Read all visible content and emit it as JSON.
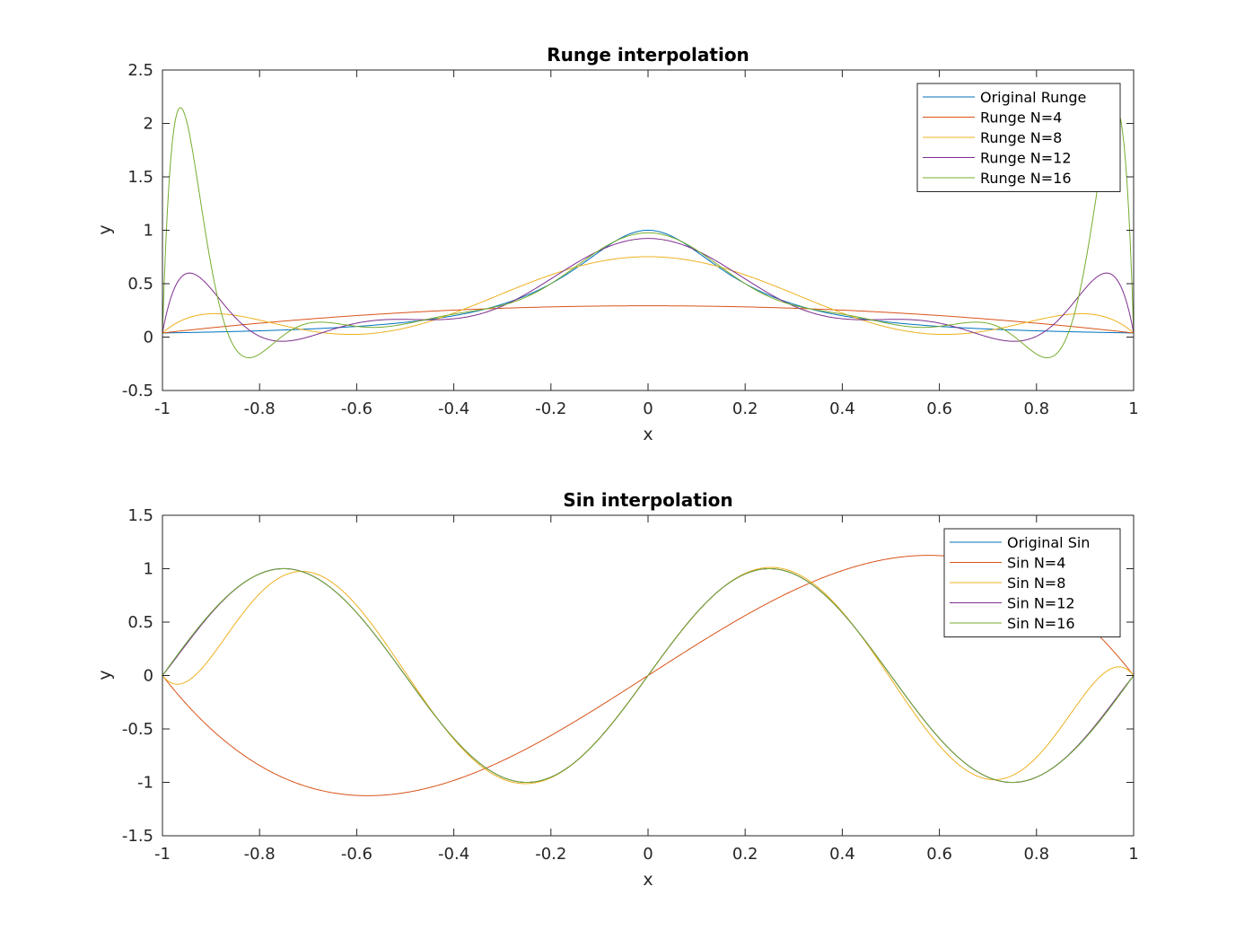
{
  "chart_data": [
    {
      "type": "line",
      "title": "Runge interpolation",
      "xlabel": "x",
      "ylabel": "y",
      "xlim": [
        -1,
        1
      ],
      "ylim": [
        -0.5,
        2.5
      ],
      "xticks": [
        "-1",
        "-0.8",
        "-0.6",
        "-0.4",
        "-0.2",
        "0",
        "0.2",
        "0.4",
        "0.6",
        "0.8",
        "1"
      ],
      "yticks": [
        "-0.5",
        "0",
        "0.5",
        "1",
        "1.5",
        "2",
        "2.5"
      ],
      "legend_position": "top-right",
      "grid": false,
      "series": [
        {
          "name": "Original Runge",
          "color": "#0072BD",
          "function": "runge",
          "n": null
        },
        {
          "name": "Runge N=4",
          "color": "#D95319",
          "function": "runge",
          "n": 4
        },
        {
          "name": "Runge N=8",
          "color": "#EDB120",
          "function": "runge",
          "n": 8
        },
        {
          "name": "Runge N=12",
          "color": "#7E2F8E",
          "function": "runge",
          "n": 12
        },
        {
          "name": "Runge N=16",
          "color": "#77AC30",
          "function": "runge",
          "n": 16
        }
      ]
    },
    {
      "type": "line",
      "title": "Sin interpolation",
      "xlabel": "x",
      "ylabel": "y",
      "xlim": [
        -1,
        1
      ],
      "ylim": [
        -1.5,
        1.5
      ],
      "xticks": [
        "-1",
        "-0.8",
        "-0.6",
        "-0.4",
        "-0.2",
        "0",
        "0.2",
        "0.4",
        "0.6",
        "0.8",
        "1"
      ],
      "yticks": [
        "-1.5",
        "-1",
        "-0.5",
        "0",
        "0.5",
        "1",
        "1.5"
      ],
      "legend_position": "top-right",
      "grid": false,
      "series": [
        {
          "name": "Original Sin",
          "color": "#0072BD",
          "function": "sin",
          "n": null
        },
        {
          "name": "Sin N=4",
          "color": "#D95319",
          "function": "sin",
          "n": 4
        },
        {
          "name": "Sin N=8",
          "color": "#EDB120",
          "function": "sin",
          "n": 8
        },
        {
          "name": "Sin N=12",
          "color": "#7E2F8E",
          "function": "sin",
          "n": 12
        },
        {
          "name": "Sin N=16",
          "color": "#77AC30",
          "function": "sin",
          "n": 16
        }
      ]
    }
  ]
}
